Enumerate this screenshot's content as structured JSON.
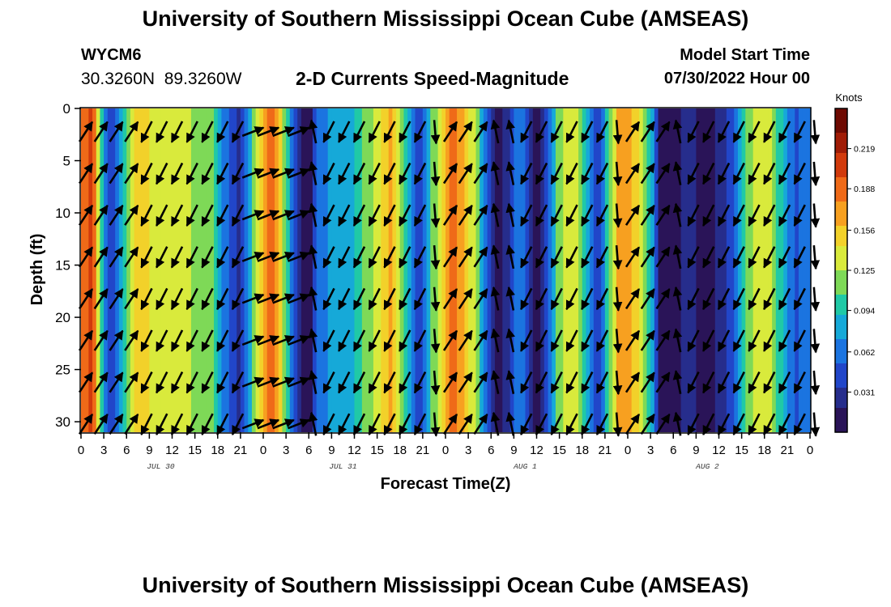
{
  "page": {
    "title": "University of Southern Mississippi Ocean Cube (AMSEAS)",
    "footer_title": "University of Southern Mississippi Ocean Cube (AMSEAS)"
  },
  "station": {
    "id": "WYCM6",
    "coords": "30.3260N  89.3260W"
  },
  "model": {
    "start_label": "Model Start Time",
    "start_value": "07/30/2022 Hour 00"
  },
  "chart_data": {
    "type": "heatmap",
    "title": "2-D Currents Speed-Magnitude",
    "xlabel": "Forecast Time(Z)",
    "ylabel": "Depth (ft)",
    "colorbar_label": "Knots",
    "x_range_hours": [
      0,
      96
    ],
    "ylim": [
      0,
      31
    ],
    "x_ticks": [
      "0",
      "3",
      "6",
      "9",
      "12",
      "15",
      "18",
      "21",
      "0",
      "3",
      "6",
      "9",
      "12",
      "15",
      "18",
      "21",
      "0",
      "3",
      "6",
      "9",
      "12",
      "15",
      "18",
      "21",
      "0",
      "3",
      "6",
      "9",
      "12",
      "15",
      "18",
      "21",
      "0"
    ],
    "date_labels": [
      {
        "text": "JUL 30",
        "hour": 10.5
      },
      {
        "text": "JUL 31",
        "hour": 34.5
      },
      {
        "text": "AUG 1",
        "hour": 58.5
      },
      {
        "text": "AUG 2",
        "hour": 82.5
      }
    ],
    "y_ticks": [
      0,
      5,
      10,
      15,
      20,
      25,
      30
    ],
    "colorbar_ticks": [
      0.031,
      0.062,
      0.094,
      0.125,
      0.156,
      0.188,
      0.219
    ],
    "colorbar_range": [
      0.0,
      0.25
    ],
    "palette": [
      "#2a1458",
      "#262d8c",
      "#2146c9",
      "#1b74e0",
      "#16a9d8",
      "#20c9a6",
      "#7ed957",
      "#d9ea3c",
      "#f2d12a",
      "#f7a020",
      "#ef6a18",
      "#d13a0c",
      "#a01c06",
      "#6e0a02"
    ],
    "speed_profile_knots": [
      {
        "hour": 0,
        "speed": 0.19
      },
      {
        "hour": 1.5,
        "speed": 0.2
      },
      {
        "hour": 3,
        "speed": 0.08
      },
      {
        "hour": 4,
        "speed": 0.04
      },
      {
        "hour": 5,
        "speed": 0.08
      },
      {
        "hour": 7,
        "speed": 0.15
      },
      {
        "hour": 12,
        "speed": 0.13
      },
      {
        "hour": 17,
        "speed": 0.12
      },
      {
        "hour": 19,
        "speed": 0.06
      },
      {
        "hour": 21,
        "speed": 0.03
      },
      {
        "hour": 23,
        "speed": 0.12
      },
      {
        "hour": 25,
        "speed": 0.2
      },
      {
        "hour": 27,
        "speed": 0.11
      },
      {
        "hour": 28.5,
        "speed": 0.03
      },
      {
        "hour": 30,
        "speed": 0.0
      },
      {
        "hour": 31,
        "speed": 0.05
      },
      {
        "hour": 33,
        "speed": 0.08
      },
      {
        "hour": 36,
        "speed": 0.09
      },
      {
        "hour": 38,
        "speed": 0.12
      },
      {
        "hour": 41,
        "speed": 0.17
      },
      {
        "hour": 43,
        "speed": 0.09
      },
      {
        "hour": 44.5,
        "speed": 0.03
      },
      {
        "hour": 46,
        "speed": 0.1
      },
      {
        "hour": 49,
        "speed": 0.19
      },
      {
        "hour": 52,
        "speed": 0.12
      },
      {
        "hour": 54,
        "speed": 0.03
      },
      {
        "hour": 55,
        "speed": 0.0
      },
      {
        "hour": 56,
        "speed": 0.03
      },
      {
        "hour": 58,
        "speed": 0.07
      },
      {
        "hour": 60,
        "speed": 0.0
      },
      {
        "hour": 61.5,
        "speed": 0.05
      },
      {
        "hour": 63,
        "speed": 0.12
      },
      {
        "hour": 65,
        "speed": 0.14
      },
      {
        "hour": 67,
        "speed": 0.07
      },
      {
        "hour": 68,
        "speed": 0.04
      },
      {
        "hour": 69.5,
        "speed": 0.1
      },
      {
        "hour": 71,
        "speed": 0.18
      },
      {
        "hour": 73,
        "speed": 0.15
      },
      {
        "hour": 75,
        "speed": 0.1
      },
      {
        "hour": 76.5,
        "speed": 0.0
      },
      {
        "hour": 78,
        "speed": 0.0
      },
      {
        "hour": 80,
        "speed": 0.03
      },
      {
        "hour": 82,
        "speed": 0.01
      },
      {
        "hour": 84,
        "speed": 0.02
      },
      {
        "hour": 86,
        "speed": 0.05
      },
      {
        "hour": 88,
        "speed": 0.12
      },
      {
        "hour": 90,
        "speed": 0.14
      },
      {
        "hour": 92,
        "speed": 0.1
      },
      {
        "hour": 94,
        "speed": 0.05
      },
      {
        "hour": 96,
        "speed": 0.06
      }
    ],
    "current_arrows": {
      "depths_ft": [
        2,
        6,
        10,
        14,
        18,
        22,
        26,
        30
      ],
      "direction_by_hour": [
        {
          "hour": 0,
          "dir": "up-right"
        },
        {
          "hour": 4,
          "dir": "up-right"
        },
        {
          "hour": 7,
          "dir": "down-left"
        },
        {
          "hour": 18,
          "dir": "down-left"
        },
        {
          "hour": 21,
          "dir": "right"
        },
        {
          "hour": 26,
          "dir": "right"
        },
        {
          "hour": 30,
          "dir": "up"
        },
        {
          "hour": 32,
          "dir": "down-left"
        },
        {
          "hour": 40,
          "dir": "down-left"
        },
        {
          "hour": 45,
          "dir": "down"
        },
        {
          "hour": 48,
          "dir": "up-right"
        },
        {
          "hour": 54,
          "dir": "up"
        },
        {
          "hour": 57,
          "dir": "down-left"
        },
        {
          "hour": 66,
          "dir": "down-left"
        },
        {
          "hour": 69,
          "dir": "down"
        },
        {
          "hour": 72,
          "dir": "up-right"
        },
        {
          "hour": 77,
          "dir": "up"
        },
        {
          "hour": 80,
          "dir": "down-left"
        },
        {
          "hour": 93,
          "dir": "down-left"
        },
        {
          "hour": 96,
          "dir": "down"
        }
      ]
    }
  }
}
